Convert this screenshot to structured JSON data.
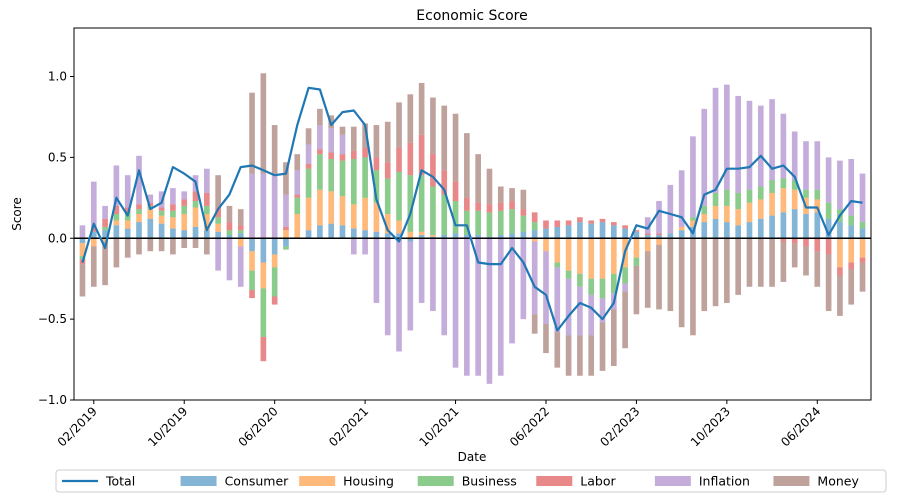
{
  "chart_data": {
    "type": "bar",
    "title": "Economic Score",
    "xlabel": "Date",
    "ylabel": "Score",
    "ylim": [
      -1.0,
      1.3
    ],
    "yticks": [
      -1.0,
      -0.5,
      0.0,
      0.5,
      1.0
    ],
    "ytick_labels": [
      "−1.0",
      "−0.5",
      "0.0",
      "0.5",
      "1.0"
    ],
    "x": [
      "2019-01",
      "2019-02",
      "2019-03",
      "2019-04",
      "2019-05",
      "2019-06",
      "2019-07",
      "2019-08",
      "2019-09",
      "2019-10",
      "2019-11",
      "2019-12",
      "2020-01",
      "2020-02",
      "2020-03",
      "2020-04",
      "2020-05",
      "2020-06",
      "2020-07",
      "2020-08",
      "2020-09",
      "2020-10",
      "2020-11",
      "2020-12",
      "2021-01",
      "2021-02",
      "2021-03",
      "2021-04",
      "2021-05",
      "2021-06",
      "2021-07",
      "2021-08",
      "2021-09",
      "2021-10",
      "2021-11",
      "2021-12",
      "2022-01",
      "2022-02",
      "2022-03",
      "2022-04",
      "2022-05",
      "2022-06",
      "2022-07",
      "2022-08",
      "2022-09",
      "2022-10",
      "2022-11",
      "2022-12",
      "2023-01",
      "2023-02",
      "2023-03",
      "2023-04",
      "2023-05",
      "2023-06",
      "2023-07",
      "2023-08",
      "2023-09",
      "2023-10",
      "2023-11",
      "2023-12",
      "2024-01",
      "2024-02",
      "2024-03",
      "2024-04",
      "2024-05",
      "2024-06",
      "2024-07",
      "2024-08",
      "2024-09",
      "2024-10"
    ],
    "x_ticks": [
      {
        "x": "2019-02",
        "label": "02/2019"
      },
      {
        "x": "2019-10",
        "label": "10/2019"
      },
      {
        "x": "2020-06",
        "label": "06/2020"
      },
      {
        "x": "2021-02",
        "label": "02/2021"
      },
      {
        "x": "2021-10",
        "label": "10/2021"
      },
      {
        "x": "2022-06",
        "label": "06/2022"
      },
      {
        "x": "2023-02",
        "label": "02/2023"
      },
      {
        "x": "2023-10",
        "label": "10/2023"
      },
      {
        "x": "2024-06",
        "label": "06/2024"
      }
    ],
    "stacked": true,
    "series": [
      {
        "name": "Consumer",
        "color": "#1f77b4",
        "values": [
          -0.03,
          0.04,
          0.05,
          0.08,
          0.06,
          0.1,
          0.12,
          0.09,
          0.06,
          0.05,
          0.07,
          0.05,
          0.04,
          0.02,
          0.03,
          -0.08,
          -0.15,
          -0.1,
          -0.05,
          0.0,
          0.05,
          0.08,
          0.09,
          0.08,
          0.06,
          0.05,
          0.04,
          0.03,
          0.03,
          -0.02,
          0.02,
          0.01,
          0.02,
          0.03,
          0.02,
          0.02,
          0.01,
          0.02,
          0.03,
          0.04,
          0.05,
          0.06,
          0.07,
          0.08,
          0.1,
          0.09,
          0.1,
          0.08,
          0.06,
          0.04,
          0.02,
          0.02,
          0.03,
          0.05,
          0.07,
          0.1,
          0.12,
          0.1,
          0.08,
          0.1,
          0.12,
          0.14,
          0.16,
          0.18,
          0.15,
          0.16,
          0.12,
          0.1,
          0.08,
          0.06
        ]
      },
      {
        "name": "Housing",
        "color": "#ff7f0e",
        "values": [
          -0.08,
          -0.05,
          -0.02,
          0.03,
          0.05,
          0.05,
          0.06,
          0.05,
          0.07,
          0.1,
          0.12,
          0.1,
          0.05,
          0.0,
          -0.05,
          -0.12,
          -0.16,
          -0.08,
          0.05,
          0.15,
          0.2,
          0.22,
          0.2,
          0.18,
          0.15,
          0.2,
          0.18,
          0.12,
          0.08,
          0.04,
          0.02,
          0.01,
          0.0,
          0.0,
          0.0,
          0.0,
          0.0,
          0.0,
          0.0,
          0.0,
          -0.02,
          -0.08,
          -0.15,
          -0.2,
          -0.22,
          -0.25,
          -0.25,
          -0.22,
          -0.18,
          -0.12,
          -0.08,
          -0.04,
          0.0,
          0.02,
          0.04,
          0.05,
          0.08,
          0.1,
          0.1,
          0.12,
          0.12,
          0.14,
          0.15,
          0.12,
          0.1,
          0.08,
          0.0,
          -0.18,
          -0.15,
          -0.12
        ]
      },
      {
        "name": "Business",
        "color": "#2ca02c",
        "values": [
          -0.02,
          0.0,
          0.02,
          0.04,
          0.05,
          0.03,
          0.02,
          0.03,
          0.04,
          0.05,
          0.04,
          0.05,
          0.04,
          0.03,
          0.02,
          -0.12,
          -0.3,
          -0.18,
          -0.02,
          0.1,
          0.18,
          0.22,
          0.2,
          0.22,
          0.28,
          0.25,
          0.2,
          0.22,
          0.3,
          0.35,
          0.35,
          0.3,
          0.25,
          0.2,
          0.15,
          0.15,
          0.15,
          0.15,
          0.15,
          0.1,
          0.05,
          0.0,
          -0.03,
          -0.05,
          -0.08,
          -0.1,
          -0.12,
          -0.12,
          -0.1,
          -0.05,
          0.0,
          0.0,
          0.0,
          0.0,
          0.02,
          0.05,
          0.08,
          0.1,
          0.1,
          0.08,
          0.08,
          0.08,
          0.06,
          0.06,
          0.05,
          0.06,
          0.1,
          0.08,
          0.06,
          0.04
        ]
      },
      {
        "name": "Labor",
        "color": "#d62728",
        "values": [
          -0.03,
          0.03,
          0.05,
          0.05,
          0.03,
          0.03,
          0.02,
          0.02,
          0.04,
          0.04,
          0.06,
          0.08,
          0.06,
          0.05,
          0.03,
          -0.05,
          -0.15,
          -0.05,
          0.02,
          0.02,
          0.03,
          0.03,
          0.04,
          0.04,
          0.05,
          0.06,
          0.08,
          0.1,
          0.15,
          0.2,
          0.25,
          0.2,
          0.15,
          0.12,
          0.08,
          0.05,
          0.05,
          0.05,
          0.05,
          0.04,
          0.06,
          0.05,
          0.04,
          0.03,
          0.03,
          0.02,
          0.02,
          0.02,
          0.02,
          0.01,
          0.01,
          0.01,
          0.0,
          0.0,
          0.0,
          0.0,
          0.0,
          0.0,
          0.0,
          0.0,
          0.0,
          0.0,
          -0.02,
          -0.03,
          -0.05,
          -0.08,
          -0.1,
          -0.05,
          -0.04,
          -0.03
        ]
      },
      {
        "name": "Inflation",
        "color": "#9467bd",
        "values": [
          0.08,
          0.28,
          0.08,
          0.25,
          0.2,
          0.3,
          0.05,
          0.1,
          0.1,
          0.05,
          0.1,
          0.15,
          -0.2,
          -0.26,
          -0.25,
          0.4,
          0.4,
          0.4,
          0.2,
          0.15,
          0.12,
          0.15,
          0.15,
          0.12,
          -0.1,
          -0.1,
          -0.4,
          -0.6,
          -0.7,
          -0.55,
          -0.4,
          -0.45,
          -0.6,
          -0.8,
          -0.85,
          -0.85,
          -0.9,
          -0.85,
          -0.65,
          -0.5,
          -0.45,
          -0.45,
          -0.4,
          -0.35,
          -0.3,
          -0.25,
          -0.15,
          -0.1,
          -0.05,
          0.0,
          0.1,
          0.2,
          0.3,
          0.35,
          0.5,
          0.6,
          0.65,
          0.65,
          0.6,
          0.55,
          0.5,
          0.5,
          0.4,
          0.3,
          0.3,
          0.3,
          0.28,
          0.3,
          0.35,
          0.3
        ]
      },
      {
        "name": "Money",
        "color": "#8c564b",
        "values": [
          -0.2,
          -0.25,
          -0.27,
          -0.18,
          -0.12,
          -0.1,
          -0.08,
          -0.08,
          -0.1,
          -0.06,
          -0.06,
          -0.1,
          0.2,
          0.1,
          0.1,
          0.5,
          0.62,
          0.3,
          0.2,
          0.1,
          0.1,
          0.1,
          0.08,
          0.05,
          0.15,
          0.15,
          0.2,
          0.25,
          0.28,
          0.3,
          0.32,
          0.35,
          0.4,
          0.42,
          0.4,
          0.3,
          0.22,
          0.1,
          0.08,
          0.12,
          -0.12,
          -0.18,
          -0.22,
          -0.25,
          -0.25,
          -0.25,
          -0.3,
          -0.35,
          -0.35,
          -0.3,
          -0.35,
          -0.4,
          -0.45,
          -0.55,
          -0.6,
          -0.45,
          -0.42,
          -0.4,
          -0.35,
          -0.3,
          -0.3,
          -0.3,
          -0.25,
          -0.15,
          -0.18,
          -0.22,
          -0.35,
          -0.25,
          -0.22,
          -0.18
        ]
      }
    ],
    "line_series": {
      "name": "Total",
      "color": "#1f77b4",
      "values": [
        -0.15,
        0.09,
        -0.06,
        0.25,
        0.14,
        0.42,
        0.18,
        0.22,
        0.44,
        0.4,
        0.35,
        0.05,
        0.18,
        0.27,
        0.44,
        0.45,
        0.42,
        0.39,
        0.4,
        0.7,
        0.93,
        0.92,
        0.7,
        0.78,
        0.79,
        0.7,
        0.24,
        0.05,
        -0.02,
        0.15,
        0.42,
        0.38,
        0.3,
        0.08,
        0.08,
        -0.15,
        -0.16,
        -0.16,
        -0.06,
        -0.15,
        -0.3,
        -0.35,
        -0.57,
        -0.48,
        -0.4,
        -0.43,
        -0.5,
        -0.4,
        -0.08,
        0.08,
        0.06,
        0.17,
        0.15,
        0.13,
        0.03,
        0.27,
        0.3,
        0.43,
        0.43,
        0.44,
        0.51,
        0.43,
        0.45,
        0.38,
        0.19,
        0.19,
        0.02,
        0.14,
        0.23,
        0.22
      ]
    },
    "legend": {
      "placement": "bottom-center",
      "entries": [
        "Total",
        "Consumer",
        "Housing",
        "Business",
        "Labor",
        "Inflation",
        "Money"
      ]
    },
    "zero_line": true,
    "grid": false
  }
}
